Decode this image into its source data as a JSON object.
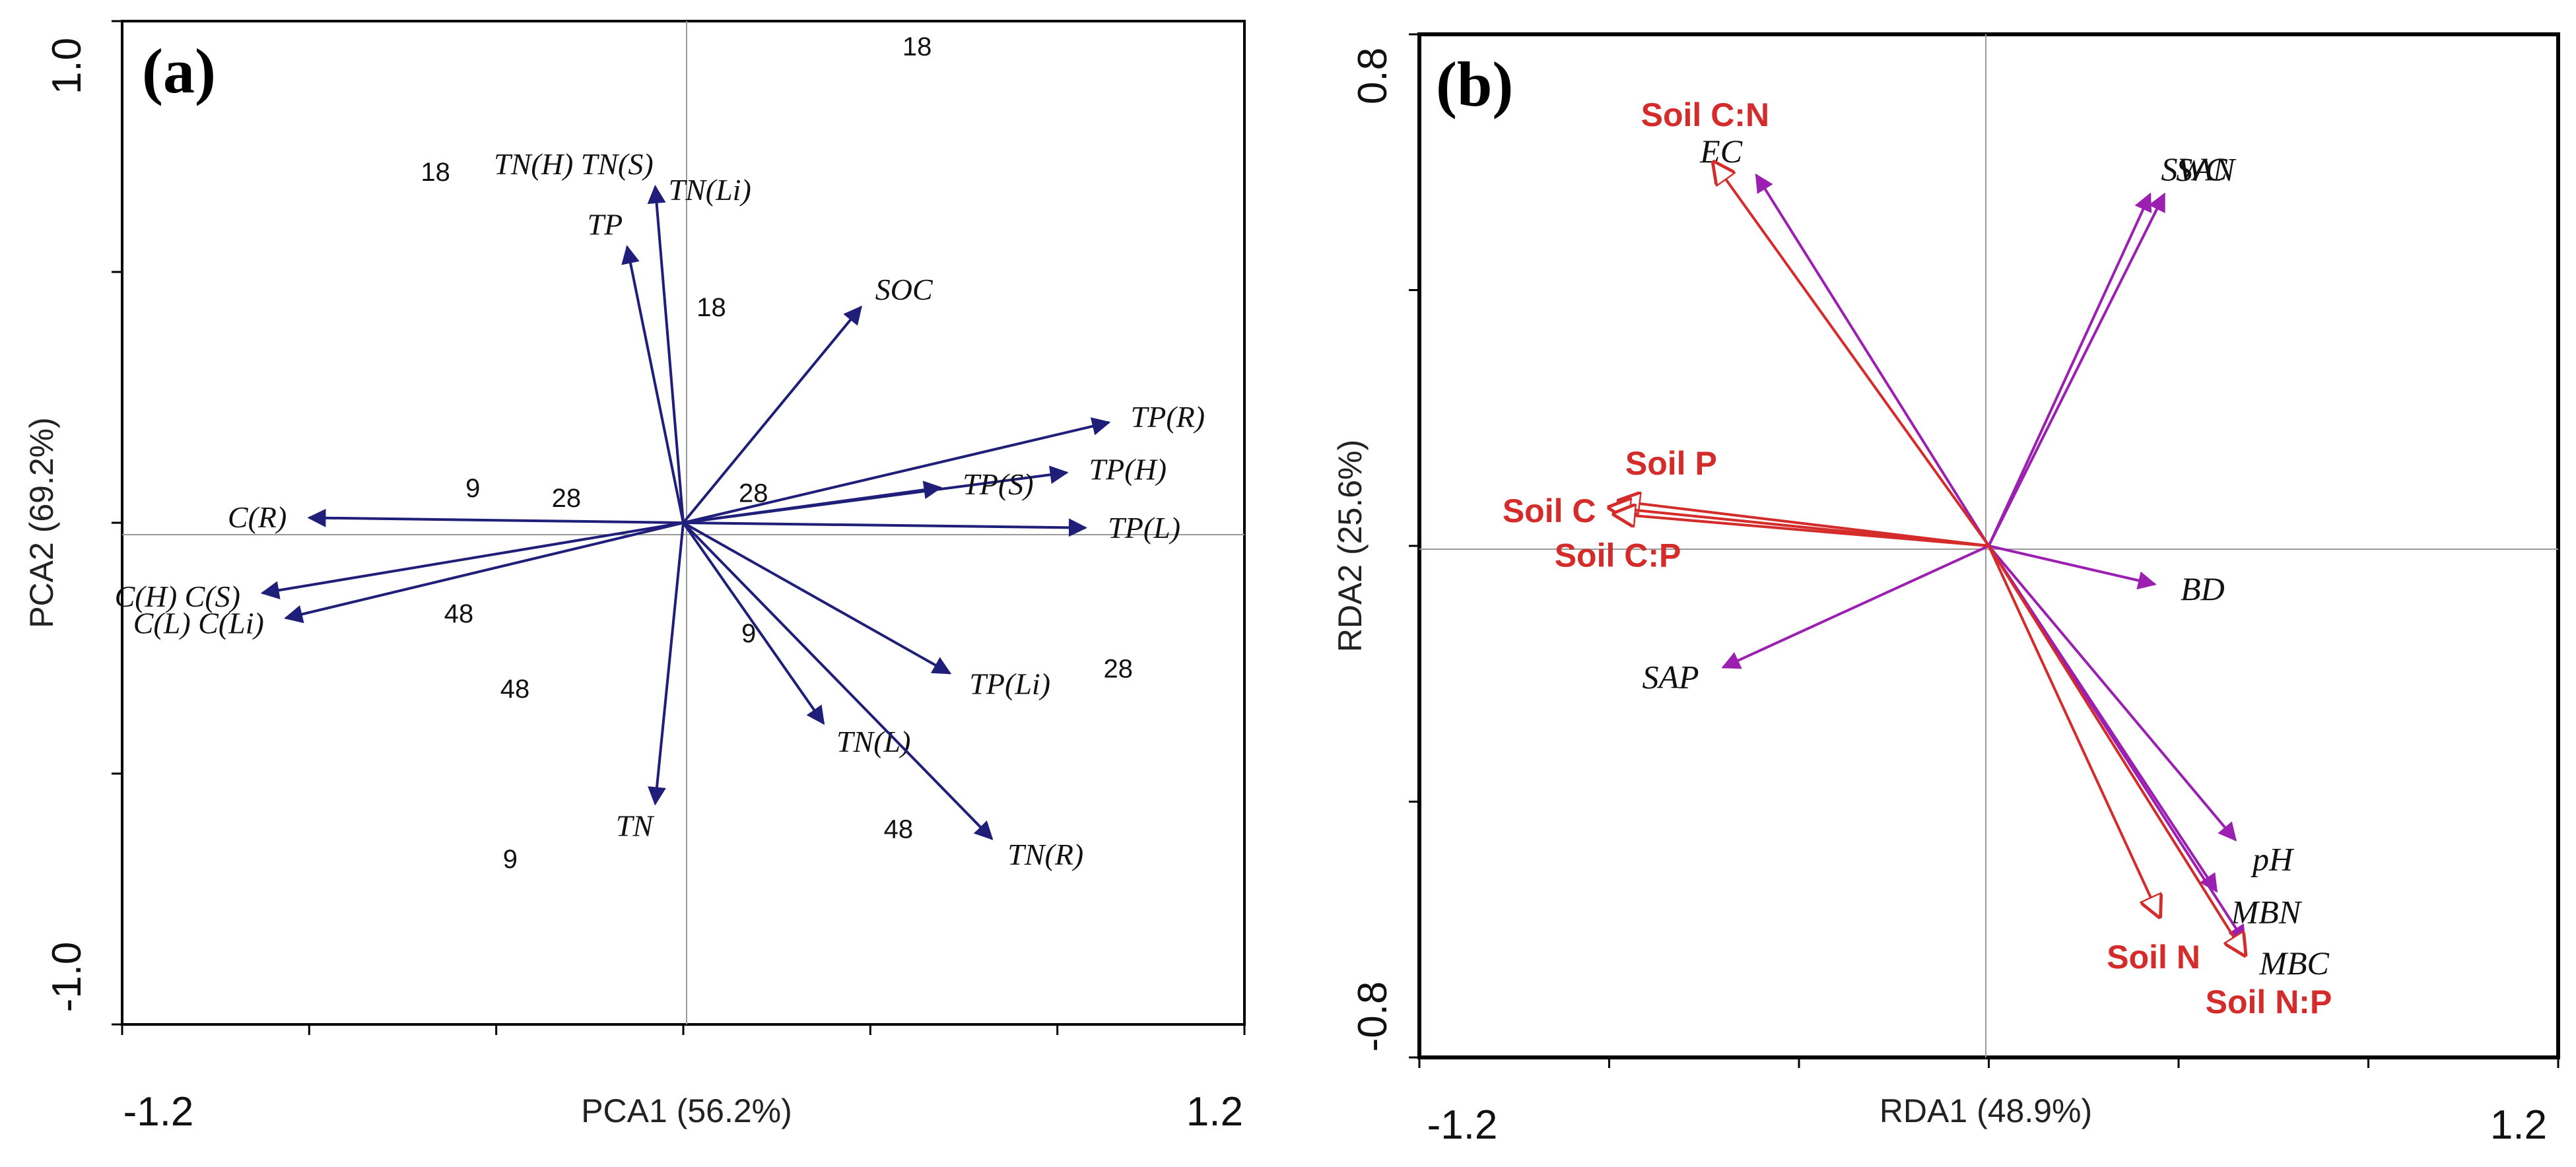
{
  "chart_data": [
    {
      "panel": "(a)",
      "type": "biplot",
      "xlabel": "PCA1 (56.2%)",
      "ylabel": "PCA2 (69.2%)",
      "xlim": [
        -1.2,
        1.2
      ],
      "ylim": [
        -1.0,
        1.0
      ],
      "x_range_labels": [
        "-1.2",
        "1.2"
      ],
      "y_range_labels": [
        "-1.0",
        "1.0"
      ],
      "arrow_color": "#1f1f7a",
      "vectors": [
        {
          "label": "TN(H) TN(S)",
          "x": -0.06,
          "y": 0.67
        },
        {
          "label": "TN(Li)",
          "x": -0.06,
          "y": 0.67,
          "hidden_arrow": true
        },
        {
          "label": "TP",
          "x": -0.12,
          "y": 0.55
        },
        {
          "label": "SOC",
          "x": 0.38,
          "y": 0.43
        },
        {
          "label": "TP(R)",
          "x": 0.91,
          "y": 0.2
        },
        {
          "label": "TP(H)",
          "x": 0.82,
          "y": 0.1
        },
        {
          "label": "TP(S)",
          "x": 0.55,
          "y": 0.07
        },
        {
          "label": "TP(L)",
          "x": 0.86,
          "y": -0.01
        },
        {
          "label": "C(R)",
          "x": -0.8,
          "y": 0.01
        },
        {
          "label": "C(H) C(S)",
          "x": -0.9,
          "y": -0.14
        },
        {
          "label": "C(L) C(Li)",
          "x": -0.85,
          "y": -0.19
        },
        {
          "label": "TP(Li)",
          "x": 0.57,
          "y": -0.3
        },
        {
          "label": "TN(L)",
          "x": 0.3,
          "y": -0.4
        },
        {
          "label": "TN",
          "x": -0.06,
          "y": -0.56
        },
        {
          "label": "TN(R)",
          "x": 0.66,
          "y": -0.63
        }
      ],
      "points": [
        {
          "label": "18",
          "x": 0.5,
          "y": 0.95
        },
        {
          "label": "18",
          "x": -0.53,
          "y": 0.7
        },
        {
          "label": "18",
          "x": 0.06,
          "y": 0.43
        },
        {
          "label": "9",
          "x": -0.45,
          "y": 0.07
        },
        {
          "label": "28",
          "x": -0.25,
          "y": 0.05
        },
        {
          "label": "28",
          "x": 0.15,
          "y": 0.06
        },
        {
          "label": "48",
          "x": -0.48,
          "y": -0.18
        },
        {
          "label": "9",
          "x": 0.14,
          "y": -0.22
        },
        {
          "label": "28",
          "x": 0.93,
          "y": -0.29
        },
        {
          "label": "48",
          "x": -0.36,
          "y": -0.33
        },
        {
          "label": "48",
          "x": 0.46,
          "y": -0.61
        },
        {
          "label": "9",
          "x": -0.37,
          "y": -0.67
        }
      ]
    },
    {
      "panel": "(b)",
      "type": "biplot",
      "xlabel": "RDA1 (48.9%)",
      "ylabel": "RDA2 (25.6%)",
      "xlim": [
        -1.2,
        1.2
      ],
      "ylim": [
        -0.8,
        0.8
      ],
      "x_range_labels": [
        "-1.2",
        "1.2"
      ],
      "y_range_labels": [
        "-0.8",
        "0.8"
      ],
      "response_color": "#9b1fb0",
      "explanatory_color": "#d42b2b",
      "response_vectors": [
        {
          "label": "EC",
          "x": -0.49,
          "y": 0.58
        },
        {
          "label": "SWC",
          "x": 0.34,
          "y": 0.55
        },
        {
          "label": "SAN",
          "x": 0.37,
          "y": 0.55
        },
        {
          "label": "BD",
          "x": 0.35,
          "y": -0.06
        },
        {
          "label": "SAP",
          "x": -0.56,
          "y": -0.19
        },
        {
          "label": "pH",
          "x": 0.52,
          "y": -0.46
        },
        {
          "label": "MBN",
          "x": 0.48,
          "y": -0.54
        },
        {
          "label": "MBC",
          "x": 0.54,
          "y": -0.62
        }
      ],
      "explanatory_vectors": [
        {
          "label": "Soil C:N",
          "x": -0.58,
          "y": 0.6
        },
        {
          "label": "Soil P",
          "x": -0.78,
          "y": 0.07
        },
        {
          "label": "Soil C",
          "x": -0.8,
          "y": 0.06
        },
        {
          "label": "Soil C:P",
          "x": -0.79,
          "y": 0.05
        },
        {
          "label": "Soil N",
          "x": 0.36,
          "y": -0.58
        },
        {
          "label": "Soil N:P",
          "x": 0.54,
          "y": -0.64
        }
      ]
    }
  ]
}
